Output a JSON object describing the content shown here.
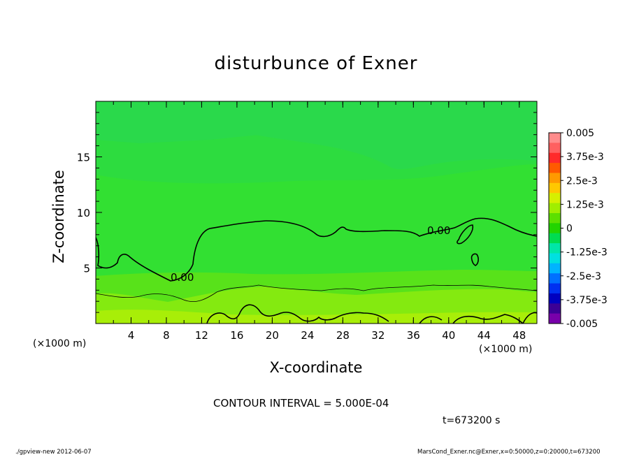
{
  "chart_data": {
    "type": "heatmap",
    "title": "disturbunce of Exner",
    "xlabel": "X-coordinate",
    "ylabel": "Z-coordinate",
    "x_unit_label": "(×1000 m)",
    "xlim": [
      0,
      50
    ],
    "ylim": [
      0,
      20
    ],
    "x_ticks": [
      4,
      8,
      12,
      16,
      20,
      24,
      28,
      32,
      36,
      40,
      44,
      48
    ],
    "y_ticks": [
      5,
      10,
      15
    ],
    "colorbar": {
      "labels": [
        "0.005",
        "3.75e-3",
        "2.5e-3",
        "1.25e-3",
        "0",
        "-1.25e-3",
        "-2.5e-3",
        "-3.75e-3",
        "-0.005"
      ],
      "range": [
        -0.005,
        0.005
      ],
      "colors": [
        "#ff8c8c",
        "#ff6060",
        "#ff2a2a",
        "#ff5a00",
        "#ff9a00",
        "#ffc800",
        "#d6f000",
        "#a0ee00",
        "#5ce000",
        "#22d400",
        "#00dc50",
        "#00e6a8",
        "#00e0e0",
        "#00b4ff",
        "#0070ff",
        "#0030f0",
        "#0000c0",
        "#3c0096",
        "#7800aa"
      ]
    },
    "contour_labels": [
      "0.00",
      "0.00"
    ],
    "contour_interval_text": "CONTOUR INTERVAL = 5.000E-04",
    "time_text": "t=673200  s",
    "footer_left": "./gpview-new   2012-06-07",
    "footer_right": "MarsCond_Exner.nc@Exner,x=0:50000,z=0:20000,t=673200"
  }
}
